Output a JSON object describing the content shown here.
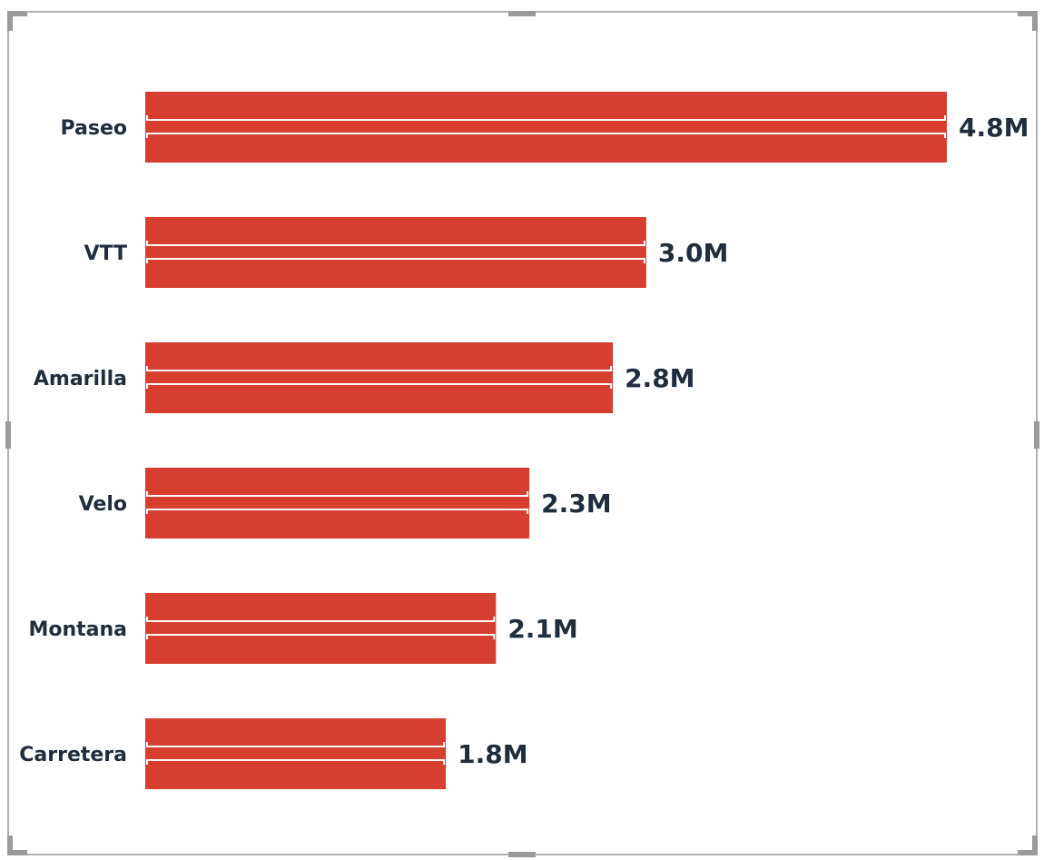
{
  "chart_data": {
    "type": "bar",
    "orientation": "horizontal",
    "categories": [
      "Paseo",
      "VTT",
      "Amarilla",
      "Velo",
      "Montana",
      "Carretera"
    ],
    "values": [
      4800000,
      3000000,
      2800000,
      2300000,
      2100000,
      1800000
    ],
    "data_labels": [
      "4.8M",
      "3.0M",
      "2.8M",
      "2.3M",
      "2.1M",
      "1.8M"
    ],
    "title": "",
    "xlabel": "",
    "ylabel": "",
    "xlim": [
      0,
      4800000
    ],
    "grid": false,
    "legend": "none",
    "bar_color": "#d63e30",
    "label_color": "#1f2d3d"
  }
}
